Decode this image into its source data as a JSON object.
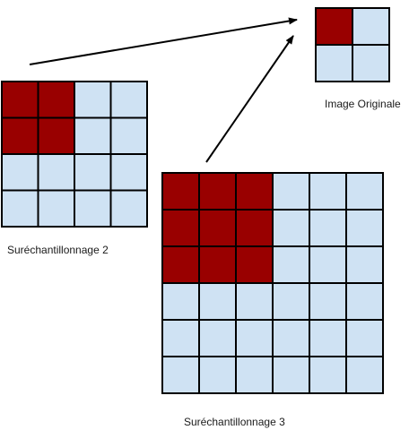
{
  "colors": {
    "source_pixel": "#990000",
    "empty_pixel": "#cfe2f3",
    "grid_line": "#000000",
    "arrow": "#000000"
  },
  "grids": [
    {
      "id": "original",
      "label": "Image Originale",
      "rows": 2,
      "cols": 2,
      "highlight_rows": 1,
      "highlight_cols": 1
    },
    {
      "id": "up2",
      "label": "Suréchantillonnage 2",
      "rows": 4,
      "cols": 4,
      "highlight_rows": 2,
      "highlight_cols": 2
    },
    {
      "id": "up3",
      "label": "Suréchantillonnage 3",
      "rows": 6,
      "cols": 6,
      "highlight_rows": 3,
      "highlight_cols": 3
    }
  ]
}
